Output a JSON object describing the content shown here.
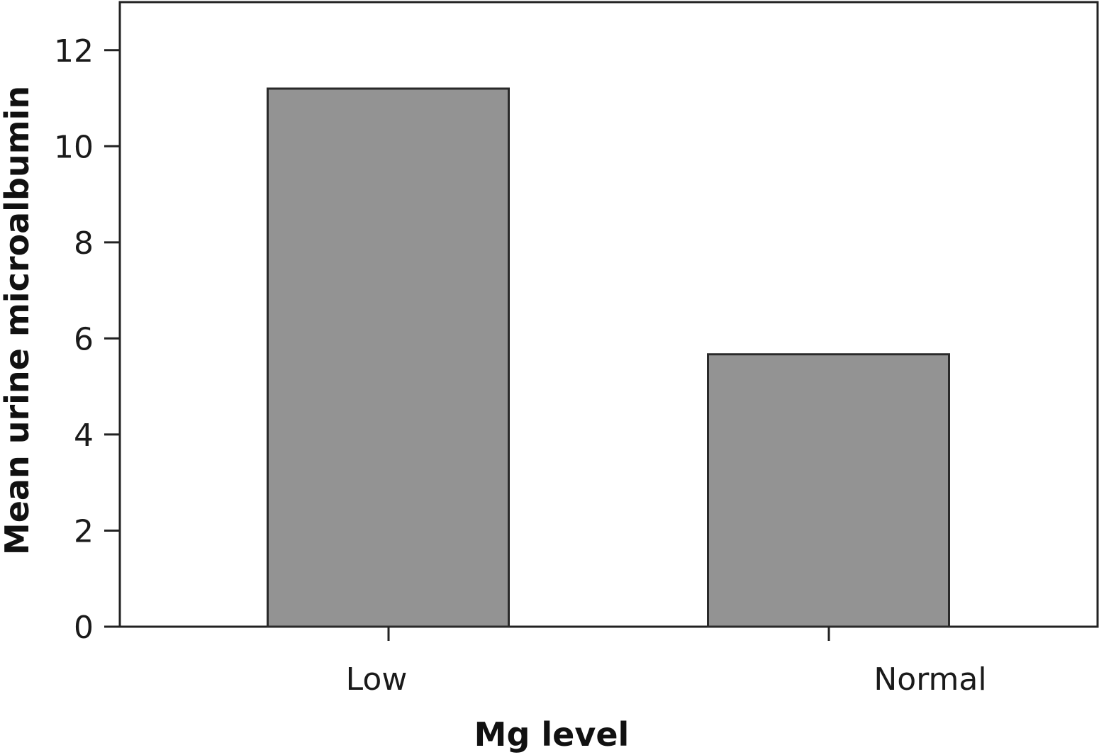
{
  "chart_data": {
    "type": "bar",
    "categories": [
      "Low",
      "Normal"
    ],
    "values": [
      11.2,
      5.67
    ],
    "xlabel": "Mg level",
    "ylabel": "Mean urine microalbumin",
    "ylim": [
      0,
      13
    ],
    "yticks": [
      0,
      2,
      4,
      6,
      8,
      10,
      12
    ],
    "grid": false,
    "bar_color": "#939393",
    "bar_edge_color": "#2a2a2a"
  }
}
